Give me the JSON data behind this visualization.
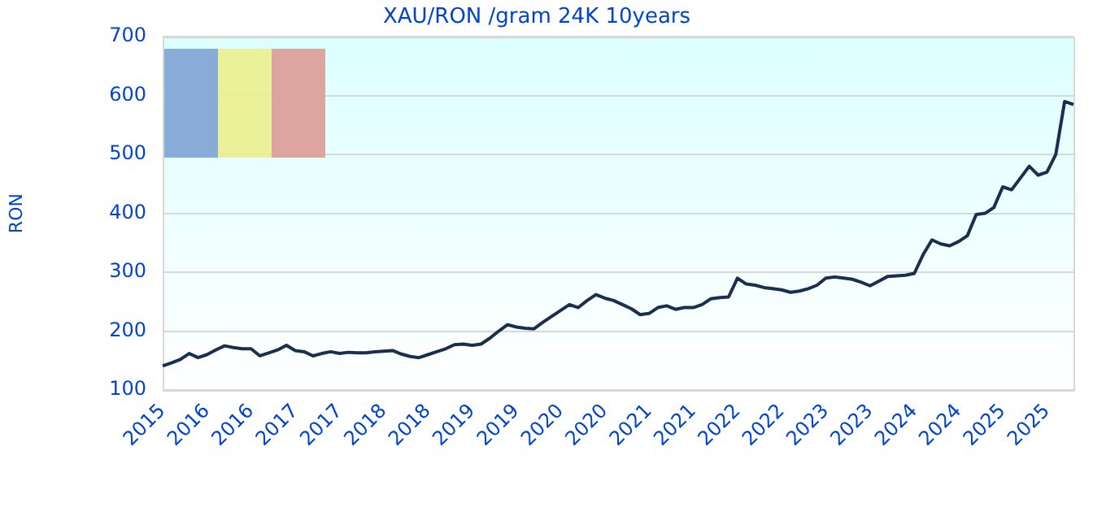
{
  "chart_data": {
    "type": "line",
    "title": "XAU/RON /gram 24K 10years",
    "ylabel": "RON",
    "categories": [
      "2015",
      null,
      null,
      null,
      null,
      "2016",
      null,
      null,
      null,
      null,
      "2016",
      null,
      null,
      null,
      null,
      "2017",
      null,
      null,
      null,
      null,
      "2017",
      null,
      null,
      null,
      null,
      "2018",
      null,
      null,
      null,
      null,
      "2018",
      null,
      null,
      null,
      null,
      "2019",
      null,
      null,
      null,
      null,
      "2019",
      null,
      null,
      null,
      null,
      "2020",
      null,
      null,
      null,
      null,
      "2020",
      null,
      null,
      null,
      null,
      "2021",
      null,
      null,
      null,
      null,
      "2021",
      null,
      null,
      null,
      null,
      "2022",
      null,
      null,
      null,
      null,
      "2022",
      null,
      null,
      null,
      null,
      "2023",
      null,
      null,
      null,
      null,
      "2023",
      null,
      null,
      null,
      null,
      "2024",
      null,
      null,
      null,
      null,
      "2024",
      null,
      null,
      null,
      null,
      "2025",
      null,
      null,
      null,
      null,
      "2025",
      null,
      null,
      null
    ],
    "series": [
      {
        "color": "#1a2e50",
        "values": [
          141,
          146,
          152,
          162,
          155,
          160,
          168,
          175,
          172,
          170,
          170,
          158,
          163,
          168,
          176,
          167,
          165,
          158,
          162,
          165,
          162,
          164,
          163,
          163,
          165,
          166,
          167,
          161,
          157,
          155,
          160,
          165,
          170,
          177,
          178,
          176,
          178,
          188,
          200,
          211,
          207,
          205,
          204,
          215,
          225,
          235,
          245,
          240,
          252,
          262,
          256,
          252,
          245,
          238,
          228,
          230,
          240,
          243,
          237,
          240,
          240,
          245,
          255,
          257,
          258,
          290,
          280,
          278,
          274,
          272,
          270,
          266,
          268,
          272,
          278,
          290,
          292,
          290,
          288,
          283,
          277,
          285,
          293,
          294,
          295,
          298,
          330,
          355,
          348,
          345,
          352,
          362,
          398,
          400,
          410,
          445,
          440,
          460,
          480,
          465,
          470,
          500,
          590,
          585
        ]
      }
    ],
    "ylim": [
      100,
      700
    ],
    "yticks": [
      100,
      200,
      300,
      400,
      500,
      600,
      700
    ],
    "grid": "y",
    "marker": "none",
    "line_style": "solid"
  }
}
